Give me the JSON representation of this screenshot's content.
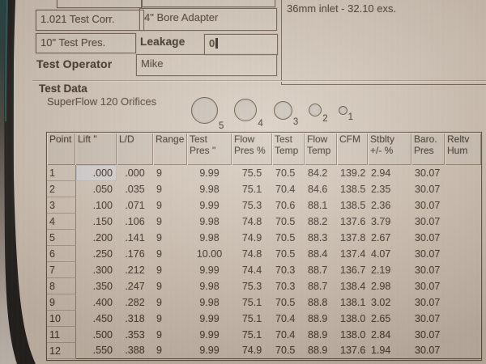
{
  "colors": {
    "screen_bg": "#d7cbbe",
    "text": "#44372c",
    "field_border": "#6a5a4b",
    "selection_bg": "#dcdadc"
  },
  "form": {
    "test_correction": "1.021 Test Corr.",
    "bore_adapter": "4\" Bore Adapter",
    "test_pressure": "10\" Test Pres.",
    "leakage_label": "Leakage",
    "leakage_value": "0",
    "operator_label": "Test Operator",
    "operator_value": "Mike",
    "notes": "36mm inlet - 32.10 exs."
  },
  "test_data": {
    "title": "Test Data",
    "subtitle": "SuperFlow 120 Orifices",
    "orifices": [
      {
        "label": "5",
        "size": 31
      },
      {
        "label": "4",
        "size": 26
      },
      {
        "label": "3",
        "size": 21
      },
      {
        "label": "2",
        "size": 14
      },
      {
        "label": "1",
        "size": 9
      }
    ]
  },
  "table": {
    "columns": [
      "Point",
      "Lift \"",
      "L/D",
      "Range",
      "Test\nPres \"",
      "Flow\nPres %",
      "Test\nTemp",
      "Flow\nTemp",
      "CFM",
      "Stblty\n+/- %",
      "Baro.\nPres",
      "Reltv\nHum"
    ],
    "rows": [
      [
        "1",
        ".000",
        ".000",
        "9",
        "9.99",
        "75.5",
        "70.5",
        "84.2",
        "139.2",
        "2.94",
        "30.07",
        ""
      ],
      [
        "2",
        ".050",
        ".035",
        "9",
        "9.98",
        "75.1",
        "70.4",
        "84.6",
        "138.5",
        "2.35",
        "30.07",
        ""
      ],
      [
        "3",
        ".100",
        ".071",
        "9",
        "9.99",
        "75.3",
        "70.6",
        "88.1",
        "138.5",
        "2.36",
        "30.07",
        ""
      ],
      [
        "4",
        ".150",
        ".106",
        "9",
        "9.98",
        "74.8",
        "70.5",
        "88.2",
        "137.6",
        "3.79",
        "30.07",
        ""
      ],
      [
        "5",
        ".200",
        ".141",
        "9",
        "9.98",
        "74.9",
        "70.5",
        "88.3",
        "137.8",
        "2.67",
        "30.07",
        ""
      ],
      [
        "6",
        ".250",
        ".176",
        "9",
        "10.00",
        "74.8",
        "70.5",
        "88.4",
        "137.4",
        "4.07",
        "30.07",
        ""
      ],
      [
        "7",
        ".300",
        ".212",
        "9",
        "9.99",
        "74.4",
        "70.3",
        "88.7",
        "136.7",
        "2.19",
        "30.07",
        ""
      ],
      [
        "8",
        ".350",
        ".247",
        "9",
        "9.98",
        "75.3",
        "70.3",
        "88.7",
        "138.4",
        "2.98",
        "30.07",
        ""
      ],
      [
        "9",
        ".400",
        ".282",
        "9",
        "9.98",
        "75.1",
        "70.5",
        "88.8",
        "138.1",
        "3.02",
        "30.07",
        ""
      ],
      [
        "10",
        ".450",
        ".318",
        "9",
        "9.99",
        "75.1",
        "70.4",
        "88.9",
        "138.0",
        "2.65",
        "30.07",
        ""
      ],
      [
        "11",
        ".500",
        ".353",
        "9",
        "9.99",
        "75.1",
        "70.4",
        "88.9",
        "138.0",
        "2.84",
        "30.07",
        ""
      ],
      [
        "12",
        ".550",
        ".388",
        "9",
        "9.99",
        "74.9",
        "70.5",
        "88.9",
        "137.6",
        "1.94",
        "30.07",
        ""
      ]
    ],
    "selected_cell": {
      "row": 0,
      "col": 1
    }
  }
}
